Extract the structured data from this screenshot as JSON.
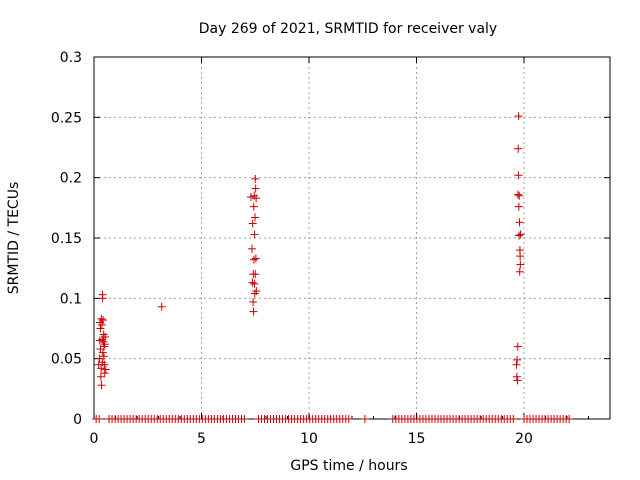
{
  "chart_data": {
    "type": "scatter",
    "title": "Day 269 of 2021, SRMTID for receiver valy",
    "xlabel": "GPS time / hours",
    "ylabel": "SRMTID / TECUs",
    "xlim": [
      0,
      24
    ],
    "ylim": [
      0,
      0.3
    ],
    "x_ticks": [
      0,
      5,
      10,
      15,
      20
    ],
    "y_ticks": [
      0,
      0.05,
      0.1,
      0.15,
      0.2,
      0.25,
      0.3
    ],
    "x_tick_labels": [
      "0",
      "5",
      "10",
      "15",
      "20"
    ],
    "y_tick_labels": [
      "0",
      "0.05",
      "0.1",
      "0.15",
      "0.2",
      "0.25",
      "0.3"
    ],
    "grid": true,
    "marker": "+",
    "color": "#cc0000",
    "series": [
      {
        "points": [
          [
            0.22,
            0.045
          ],
          [
            0.25,
            0.05
          ],
          [
            0.27,
            0.065
          ],
          [
            0.28,
            0.08
          ],
          [
            0.3,
            0.075
          ],
          [
            0.3,
            0.058
          ],
          [
            0.32,
            0.035
          ],
          [
            0.33,
            0.042
          ],
          [
            0.34,
            0.083
          ],
          [
            0.35,
            0.028
          ],
          [
            0.37,
            0.078
          ],
          [
            0.38,
            0.066
          ],
          [
            0.39,
            0.047
          ],
          [
            0.4,
            0.103
          ],
          [
            0.4,
            0.1
          ],
          [
            0.41,
            0.055
          ],
          [
            0.42,
            0.082
          ],
          [
            0.44,
            0.064
          ],
          [
            0.45,
            0.07
          ],
          [
            0.46,
            0.052
          ],
          [
            0.47,
            0.06
          ],
          [
            0.48,
            0.045
          ],
          [
            0.5,
            0.062
          ],
          [
            0.5,
            0.038
          ],
          [
            0.52,
            0.068
          ],
          [
            0.55,
            0.041
          ],
          [
            3.15,
            0.093
          ],
          [
            7.3,
            0.184
          ],
          [
            7.35,
            0.141
          ],
          [
            7.37,
            0.113
          ],
          [
            7.38,
            0.162
          ],
          [
            7.4,
            0.097
          ],
          [
            7.41,
            0.12
          ],
          [
            7.42,
            0.089
          ],
          [
            7.43,
            0.176
          ],
          [
            7.44,
            0.132
          ],
          [
            7.45,
            0.185
          ],
          [
            7.46,
            0.112
          ],
          [
            7.47,
            0.153
          ],
          [
            7.48,
            0.104
          ],
          [
            7.49,
            0.167
          ],
          [
            7.5,
            0.199
          ],
          [
            7.5,
            0.12
          ],
          [
            7.52,
            0.191
          ],
          [
            7.53,
            0.133
          ],
          [
            7.54,
            0.183
          ],
          [
            7.55,
            0.106
          ],
          [
            19.65,
            0.045
          ],
          [
            19.67,
            0.035
          ],
          [
            19.68,
            0.049
          ],
          [
            19.7,
            0.032
          ],
          [
            19.71,
            0.06
          ],
          [
            19.72,
            0.186
          ],
          [
            19.73,
            0.224
          ],
          [
            19.74,
            0.202
          ],
          [
            19.75,
            0.251
          ],
          [
            19.76,
            0.176
          ],
          [
            19.77,
            0.152
          ],
          [
            19.78,
            0.185
          ],
          [
            19.79,
            0.163
          ],
          [
            19.8,
            0.122
          ],
          [
            19.81,
            0.14
          ],
          [
            19.82,
            0.135
          ],
          [
            19.83,
            0.128
          ],
          [
            19.84,
            0.153
          ]
        ],
        "zero_runs": [
          {
            "start": 0.1,
            "end": 0.25,
            "step": 0.14
          },
          {
            "start": 0.7,
            "end": 7.1,
            "step": 0.14
          },
          {
            "start": 7.65,
            "end": 11.95,
            "step": 0.14
          },
          {
            "start": 12.6,
            "end": 12.6,
            "step": 0.14
          },
          {
            "start": 13.9,
            "end": 19.5,
            "step": 0.14
          },
          {
            "start": 20.0,
            "end": 22.2,
            "step": 0.14
          }
        ]
      }
    ]
  }
}
